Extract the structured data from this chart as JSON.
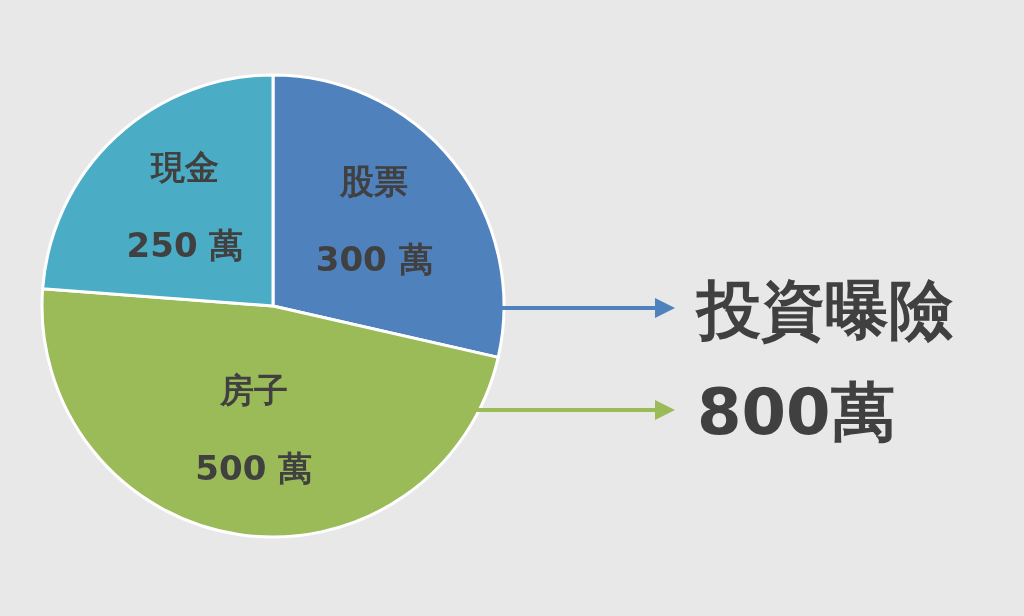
{
  "chart_data": {
    "type": "pie",
    "categories": [
      "股票",
      "房子",
      "現金"
    ],
    "values": [
      300,
      500,
      250
    ],
    "colors": [
      "#4f81bd",
      "#9bbb59",
      "#4bacc6"
    ],
    "value_labels": [
      "300 萬",
      "500 萬",
      "250 萬"
    ],
    "annotations": [
      "投資曝險",
      "800萬"
    ]
  }
}
